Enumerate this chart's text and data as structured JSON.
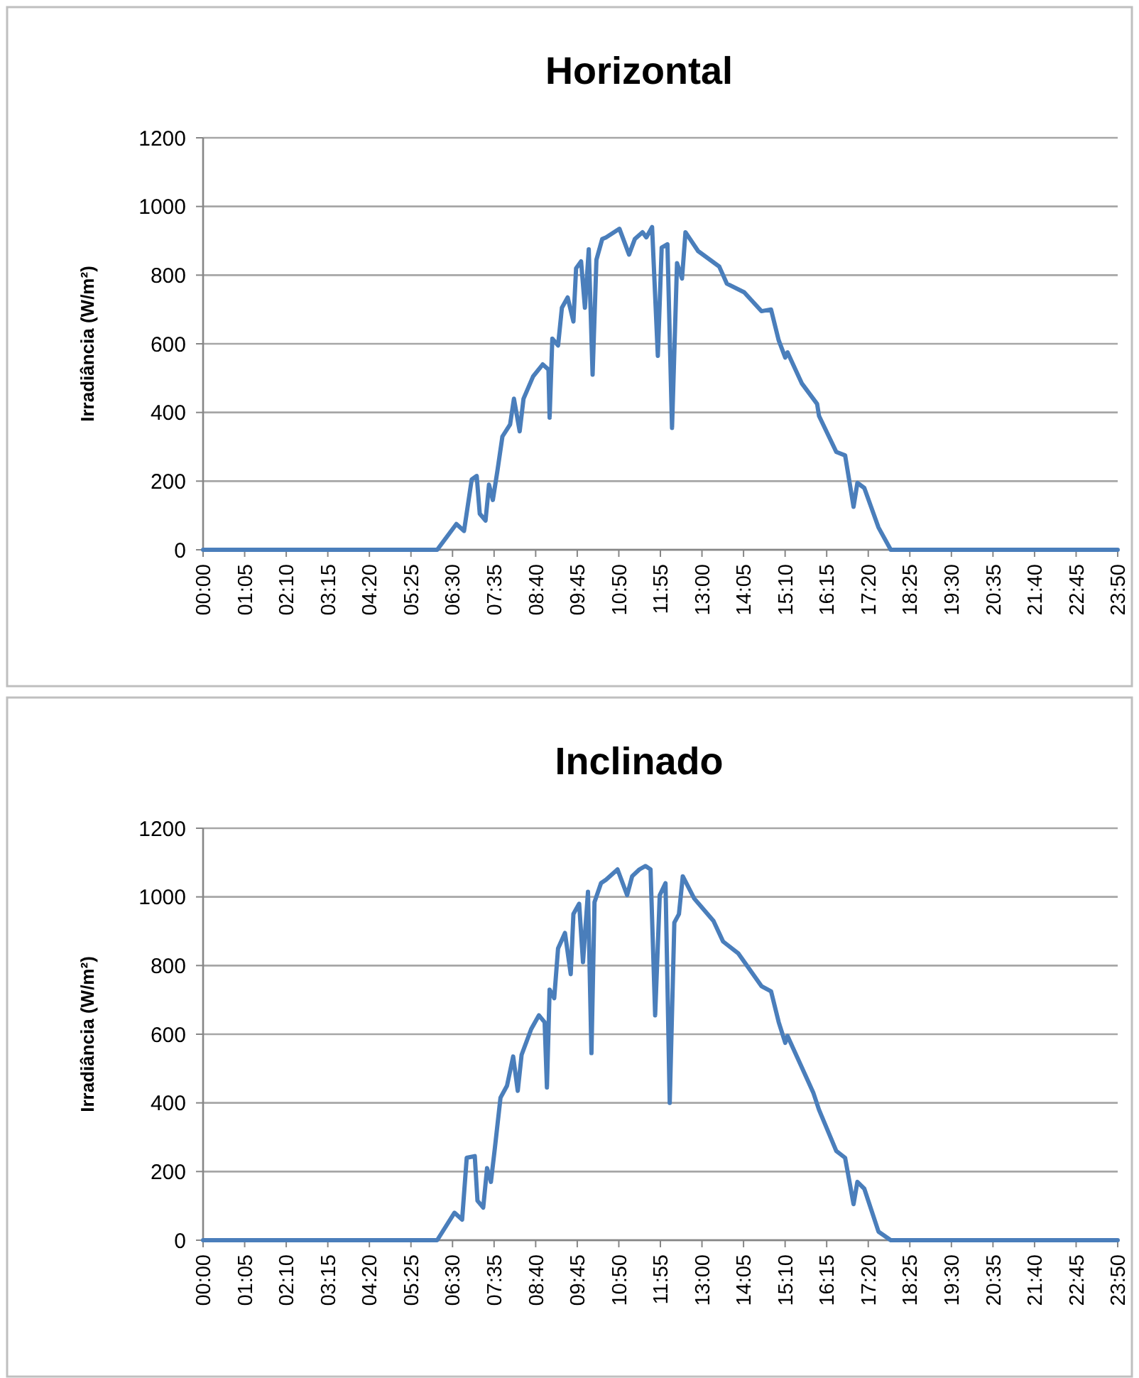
{
  "chart_data": [
    {
      "type": "line",
      "title": "Horizontal",
      "ylabel": "Irradiância (W/m²)",
      "grid": "y",
      "ylim": [
        0,
        1200
      ],
      "yticks": [
        0,
        200,
        400,
        600,
        800,
        1000,
        1200
      ],
      "xlim": [
        0,
        23.8333
      ],
      "xticks": [
        {
          "value": 0,
          "label": "00:00"
        },
        {
          "value": 1.0833,
          "label": "01:05"
        },
        {
          "value": 2.1667,
          "label": "02:10"
        },
        {
          "value": 3.25,
          "label": "03:15"
        },
        {
          "value": 4.3333,
          "label": "04:20"
        },
        {
          "value": 5.4167,
          "label": "05:25"
        },
        {
          "value": 6.5,
          "label": "06:30"
        },
        {
          "value": 7.5833,
          "label": "07:35"
        },
        {
          "value": 8.6667,
          "label": "08:40"
        },
        {
          "value": 9.75,
          "label": "09:45"
        },
        {
          "value": 10.8333,
          "label": "10:50"
        },
        {
          "value": 11.9167,
          "label": "11:55"
        },
        {
          "value": 13,
          "label": "13:00"
        },
        {
          "value": 14.0833,
          "label": "14:05"
        },
        {
          "value": 15.1667,
          "label": "15:10"
        },
        {
          "value": 16.25,
          "label": "16:15"
        },
        {
          "value": 17.3333,
          "label": "17:20"
        },
        {
          "value": 18.4167,
          "label": "18:25"
        },
        {
          "value": 19.5,
          "label": "19:30"
        },
        {
          "value": 20.5833,
          "label": "20:35"
        },
        {
          "value": 21.6667,
          "label": "21:40"
        },
        {
          "value": 22.75,
          "label": "22:45"
        },
        {
          "value": 23.8333,
          "label": "23:50"
        }
      ],
      "x": [
        0,
        6.1,
        6.6,
        6.8,
        7.0,
        7.13,
        7.21,
        7.36,
        7.45,
        7.55,
        7.67,
        7.8,
        8.0,
        8.1,
        8.25,
        8.35,
        8.6,
        8.85,
        9.0,
        9.03,
        9.1,
        9.25,
        9.35,
        9.5,
        9.65,
        9.72,
        9.85,
        9.95,
        10.05,
        10.15,
        10.25,
        10.4,
        10.5,
        10.85,
        11.1,
        11.25,
        11.45,
        11.55,
        11.7,
        11.85,
        11.95,
        12.1,
        12.22,
        12.35,
        12.48,
        12.57,
        12.9,
        13.45,
        13.65,
        14.1,
        14.55,
        14.8,
        15.0,
        15.17,
        15.23,
        15.6,
        16.0,
        16.05,
        16.5,
        16.73,
        16.95,
        17.05,
        17.23,
        17.6,
        17.92,
        23.8333
      ],
      "series": [
        {
          "color": "#4a7ebb",
          "values": [
            0,
            0,
            75,
            55,
            205,
            215,
            105,
            85,
            190,
            145,
            230,
            330,
            365,
            440,
            345,
            440,
            505,
            540,
            525,
            385,
            615,
            595,
            705,
            735,
            665,
            820,
            840,
            705,
            875,
            510,
            845,
            905,
            910,
            935,
            860,
            905,
            925,
            910,
            940,
            565,
            880,
            890,
            355,
            835,
            790,
            925,
            870,
            825,
            775,
            750,
            695,
            700,
            610,
            560,
            575,
            485,
            425,
            390,
            285,
            275,
            125,
            195,
            180,
            65,
            0,
            0
          ]
        }
      ]
    },
    {
      "type": "line",
      "title": "Inclinado",
      "ylabel": "Irradiância (W/m²)",
      "grid": "y",
      "ylim": [
        0,
        1200
      ],
      "yticks": [
        0,
        200,
        400,
        600,
        800,
        1000,
        1200
      ],
      "xlim": [
        0,
        23.8333
      ],
      "xticks": [
        {
          "value": 0,
          "label": "00:00"
        },
        {
          "value": 1.0833,
          "label": "01:05"
        },
        {
          "value": 2.1667,
          "label": "02:10"
        },
        {
          "value": 3.25,
          "label": "03:15"
        },
        {
          "value": 4.3333,
          "label": "04:20"
        },
        {
          "value": 5.4167,
          "label": "05:25"
        },
        {
          "value": 6.5,
          "label": "06:30"
        },
        {
          "value": 7.5833,
          "label": "07:35"
        },
        {
          "value": 8.6667,
          "label": "08:40"
        },
        {
          "value": 9.75,
          "label": "09:45"
        },
        {
          "value": 10.8333,
          "label": "10:50"
        },
        {
          "value": 11.9167,
          "label": "11:55"
        },
        {
          "value": 13,
          "label": "13:00"
        },
        {
          "value": 14.0833,
          "label": "14:05"
        },
        {
          "value": 15.1667,
          "label": "15:10"
        },
        {
          "value": 16.25,
          "label": "16:15"
        },
        {
          "value": 17.3333,
          "label": "17:20"
        },
        {
          "value": 18.4167,
          "label": "18:25"
        },
        {
          "value": 19.5,
          "label": "19:30"
        },
        {
          "value": 20.5833,
          "label": "20:35"
        },
        {
          "value": 21.6667,
          "label": "21:40"
        },
        {
          "value": 22.75,
          "label": "22:45"
        },
        {
          "value": 23.8333,
          "label": "23:50"
        }
      ],
      "x": [
        0,
        6.1,
        6.55,
        6.75,
        6.87,
        7.08,
        7.15,
        7.3,
        7.4,
        7.5,
        7.6,
        7.75,
        7.92,
        8.08,
        8.2,
        8.3,
        8.55,
        8.75,
        8.9,
        8.96,
        9.03,
        9.15,
        9.25,
        9.43,
        9.58,
        9.65,
        9.8,
        9.9,
        10.03,
        10.12,
        10.2,
        10.37,
        10.5,
        10.8,
        11.05,
        11.18,
        11.37,
        11.53,
        11.66,
        11.78,
        11.9,
        12.05,
        12.16,
        12.28,
        12.4,
        12.5,
        12.8,
        13.3,
        13.55,
        13.95,
        14.55,
        14.8,
        15.0,
        15.17,
        15.23,
        15.9,
        16.05,
        16.5,
        16.73,
        16.95,
        17.05,
        17.23,
        17.6,
        17.92,
        23.8333
      ],
      "series": [
        {
          "color": "#4a7ebb",
          "values": [
            0,
            0,
            80,
            60,
            240,
            245,
            115,
            95,
            210,
            170,
            265,
            415,
            450,
            535,
            435,
            540,
            615,
            655,
            635,
            445,
            730,
            705,
            850,
            895,
            775,
            950,
            980,
            810,
            1015,
            545,
            985,
            1040,
            1050,
            1080,
            1005,
            1060,
            1080,
            1090,
            1080,
            655,
            1005,
            1040,
            400,
            925,
            950,
            1060,
            995,
            930,
            870,
            835,
            740,
            725,
            635,
            575,
            595,
            430,
            380,
            260,
            240,
            105,
            170,
            150,
            25,
            0,
            0
          ]
        }
      ]
    }
  ]
}
